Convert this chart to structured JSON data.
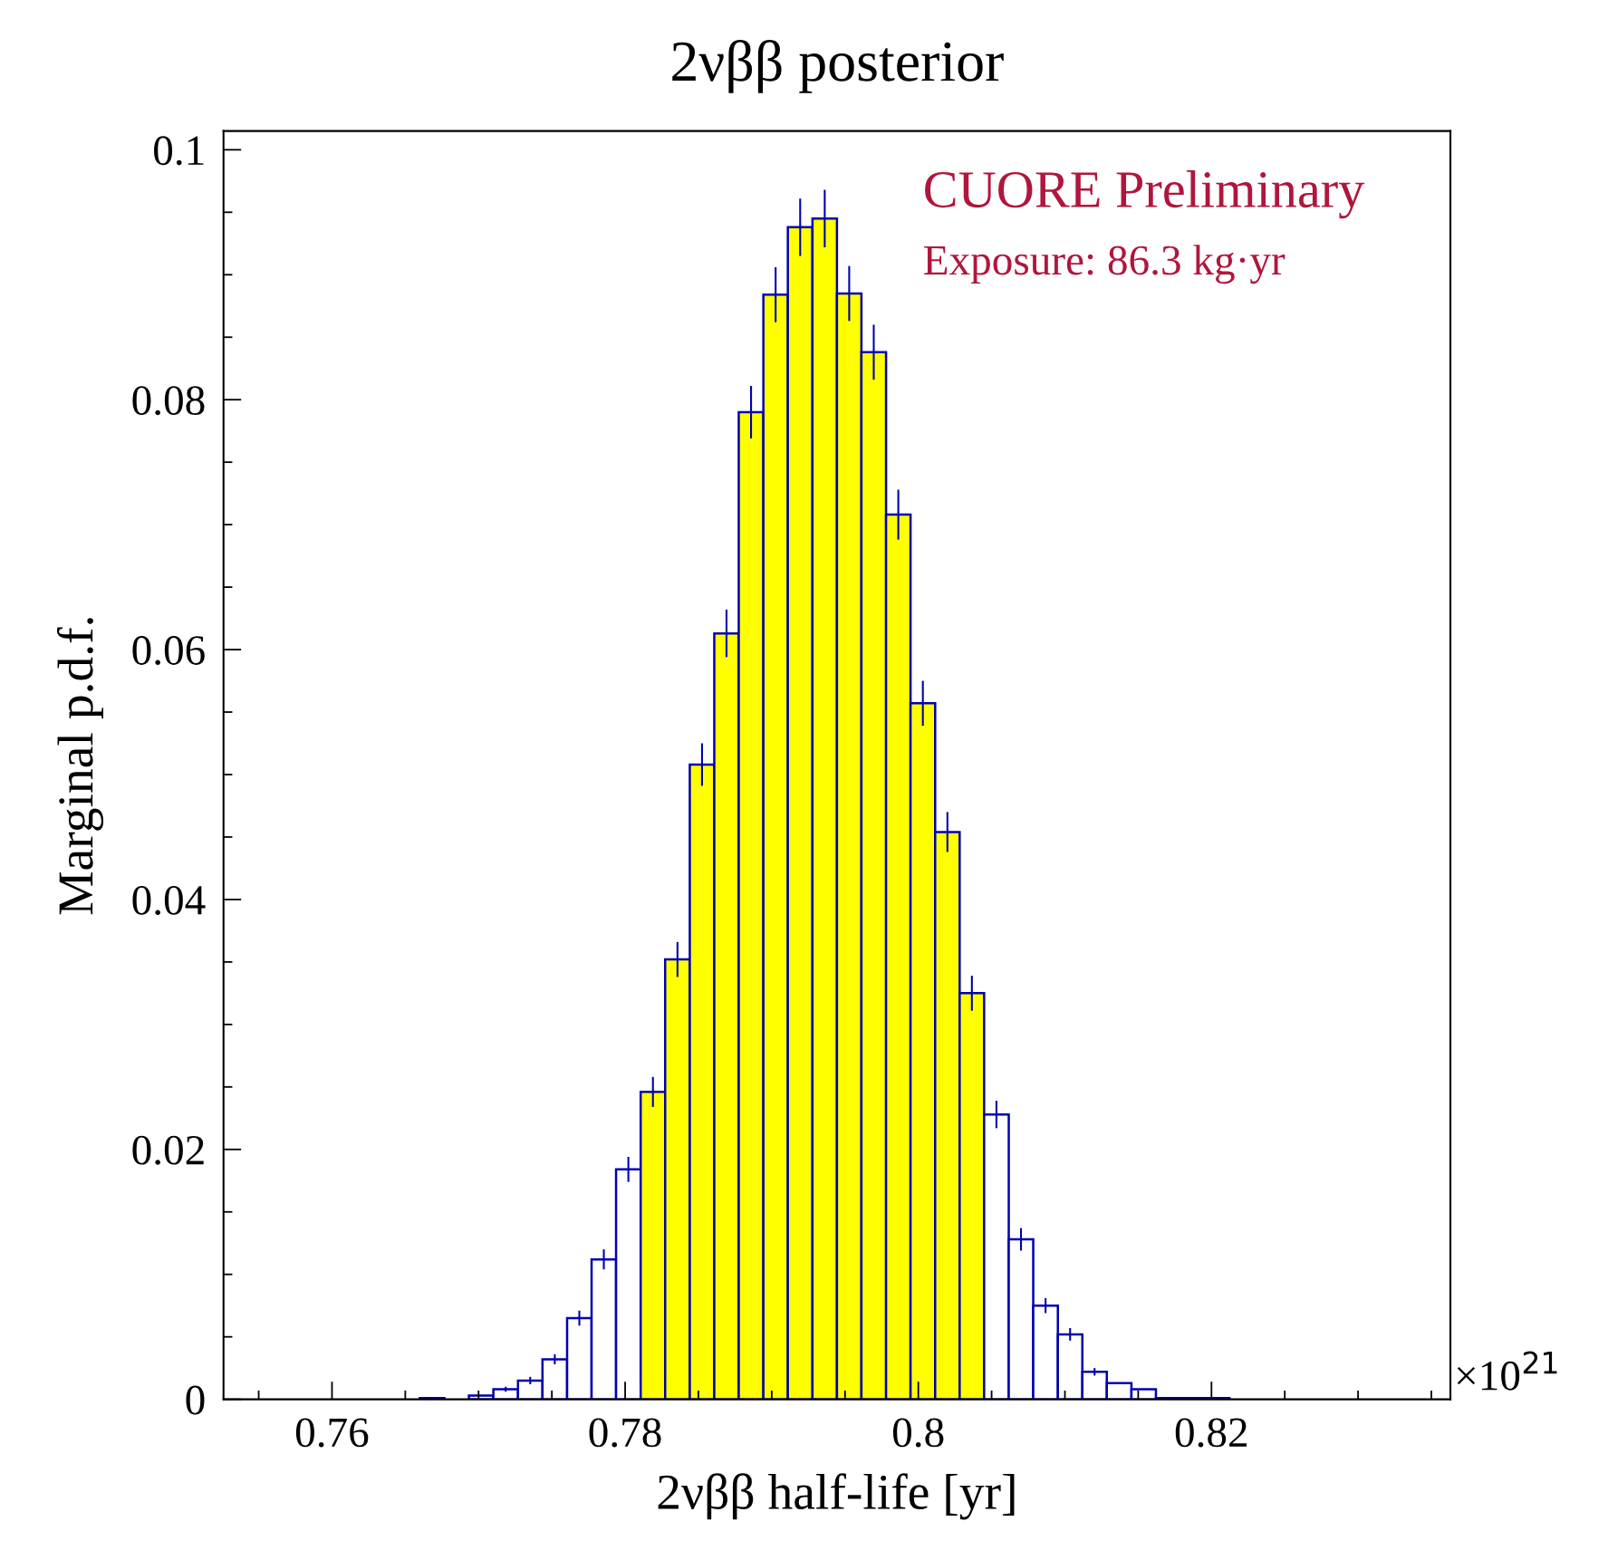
{
  "chart_data": {
    "type": "histogram",
    "title": "2νββ posterior",
    "xlabel": "2νββ half-life [yr]",
    "ylabel": "Marginal p.d.f.",
    "bins": [
      0.7526,
      0.75427,
      0.75595,
      0.75762,
      0.7593,
      0.76097,
      0.76264,
      0.76432,
      0.76599,
      0.76767,
      0.76934,
      0.77101,
      0.77269,
      0.77436,
      0.77604,
      0.77771,
      0.77938,
      0.78106,
      0.78273,
      0.78441,
      0.78608,
      0.78775,
      0.78943,
      0.7911,
      0.79278,
      0.79445,
      0.79612,
      0.7978,
      0.79947,
      0.80115,
      0.80282,
      0.80449,
      0.80617,
      0.80784,
      0.80952,
      0.81119,
      0.81286,
      0.81454,
      0.81621,
      0.81789,
      0.81956,
      0.82123,
      0.82291,
      0.82458,
      0.82626,
      0.82793,
      0.8296,
      0.83128,
      0.83295,
      0.83463,
      0.8363
    ],
    "values": [
      0,
      0,
      0,
      0,
      0,
      0,
      0,
      0,
      0.0001,
      0,
      0.0003,
      0.0008,
      0.0015,
      0.0032,
      0.0065,
      0.0112,
      0.0184,
      0.0246,
      0.0352,
      0.0508,
      0.0613,
      0.079,
      0.0884,
      0.0938,
      0.0945,
      0.0885,
      0.0838,
      0.0708,
      0.0557,
      0.0454,
      0.0325,
      0.0228,
      0.0128,
      0.0075,
      0.0052,
      0.0022,
      0.0013,
      0.0008,
      0.0001,
      0.0001,
      0.0001,
      0,
      0,
      0,
      0,
      0,
      0,
      0,
      0,
      0
    ],
    "errors": [
      null,
      null,
      null,
      null,
      null,
      null,
      null,
      null,
      null,
      null,
      null,
      0.0002,
      0.0003,
      0.0004,
      0.0006,
      0.0008,
      0.001,
      0.0012,
      0.0014,
      0.0017,
      0.0019,
      0.0021,
      0.0022,
      0.0023,
      0.0023,
      0.0022,
      0.0022,
      0.002,
      0.0018,
      0.0016,
      0.0014,
      0.0011,
      0.0009,
      0.0006,
      0.0005,
      0.0003,
      null,
      null,
      null,
      null,
      null,
      null,
      null,
      null,
      null,
      null,
      null,
      null,
      null,
      null
    ],
    "color": "#0000b0",
    "colors": [
      "#ffffff",
      "#ffffff",
      "#ffffff",
      "#ffffff",
      "#ffffff",
      "#ffffff",
      "#ffffff",
      "#ffffff",
      "#ffffff",
      "#ffffff",
      "#ffffff",
      "#ffffff",
      "#ffffff",
      "#ffffff",
      "#ffffff",
      "#ffffff",
      "#ffffff",
      "#ffff00",
      "#ffff00",
      "#ffff00",
      "#ffff00",
      "#ffff00",
      "#ffff00",
      "#ffff00",
      "#ffff00",
      "#ffff00",
      "#ffff00",
      "#ffff00",
      "#ffff00",
      "#ffff00",
      "#ffff00",
      "#ffffff",
      "#ffffff",
      "#ffffff",
      "#ffffff",
      "#ffffff",
      "#ffffff",
      "#ffffff",
      "#ffffff",
      "#ffffff",
      "#ffffff",
      "#ffffff",
      "#ffffff",
      "#ffffff",
      "#ffffff",
      "#ffffff",
      "#ffffff",
      "#ffffff",
      "#ffffff",
      "#ffffff"
    ],
    "xlim": [
      0.7526,
      0.8363
    ],
    "xticks": [
      0.76,
      0.78,
      {
        "value": 0.8,
        "label": "0.8"
      },
      0.82
    ],
    "ylim": [
      0,
      0.1015
    ],
    "yticks": [
      0,
      0.02,
      0.04,
      0.06,
      0.08,
      0.1
    ],
    "annotations": [
      "CUORE Preliminary",
      "Exposure: 86.3 kg·yr",
      "×10$^{21}$"
    ],
    "grid": false,
    "legend": false
  }
}
